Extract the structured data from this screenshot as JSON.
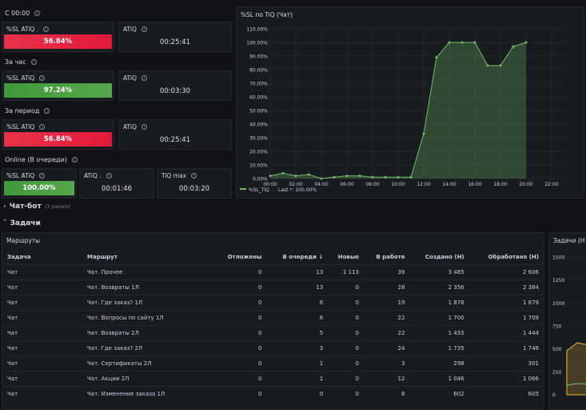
{
  "sections": {
    "since_midnight": "С 00:00",
    "last_hour": "За час",
    "period": "За период",
    "online": "Online (В очереди)"
  },
  "stats": {
    "sl1": {
      "title": "%SL ATiQ .",
      "value": "56.84%"
    },
    "atiq1": {
      "title": "ATiQ",
      "value": "00:25:41"
    },
    "sl2": {
      "title": "%SL ATiQ",
      "value": "97.24%"
    },
    "atiq2": {
      "title": "ATiQ",
      "value": "00:03:30"
    },
    "sl3": {
      "title": "%SL ATiQ",
      "value": "56.84%"
    },
    "atiq3": {
      "title": "ATiQ",
      "value": "00:25:41"
    },
    "sl4": {
      "title": "%SL ATiQ",
      "value": "100.00%"
    },
    "atiq4": {
      "title": "ATiQ .",
      "value": "00:01:46"
    },
    "tiqmax": {
      "title": "TiQ max",
      "value": "00:03:20"
    }
  },
  "colors": {
    "red": "#e21a3a",
    "green": "#56a64b",
    "line": "#73bf69"
  },
  "chart_data": {
    "type": "area",
    "title": "%SL по TiQ (Чат)",
    "x": [
      "00:00",
      "01:00",
      "02:00",
      "03:00",
      "04:00",
      "05:00",
      "06:00",
      "07:00",
      "08:00",
      "09:00",
      "10:00",
      "11:00",
      "12:00",
      "13:00",
      "14:00",
      "15:00",
      "16:00",
      "17:00",
      "18:00",
      "19:00",
      "20:00"
    ],
    "x_ticks": [
      "00:00",
      "02:00",
      "04:00",
      "06:00",
      "08:00",
      "10:00",
      "12:00",
      "14:00",
      "16:00",
      "18:00",
      "20:00",
      "22:00"
    ],
    "y_ticks": [
      "0.00%",
      "10.00%",
      "20.00%",
      "30.00%",
      "40.00%",
      "50.00%",
      "60.00%",
      "70.00%",
      "80.00%",
      "90.00%",
      "100.00%",
      "110.00%"
    ],
    "ylim": [
      0,
      110
    ],
    "xlim_hours": [
      0,
      23
    ],
    "series": [
      {
        "name": "%SL_TiQ",
        "values": [
          2,
          4,
          2,
          3,
          0,
          1,
          2,
          2,
          1,
          1,
          1,
          1,
          33,
          89,
          100,
          100,
          100,
          83,
          83,
          97,
          100
        ]
      }
    ],
    "legend": "%SL_TiQ",
    "legend_extra": "Last *: 100.00%"
  },
  "rows": {
    "chatbot": {
      "label": "Чат-бот",
      "sub": "(3 panels)"
    },
    "tasks": {
      "label": "Задачи"
    }
  },
  "routes_table": {
    "title": "Маршруты",
    "columns": [
      "Задача",
      "Маршрут",
      "Отложены",
      "В очереди ↓",
      "Новые",
      "В работе",
      "Создано (Н)",
      "Обработано (Н)"
    ],
    "rows": [
      [
        "Чат",
        "Чат. Прочее",
        "0",
        "13",
        "1 113",
        "39",
        "3 485",
        "2 606"
      ],
      [
        "Чат",
        "Чат. Возвраты 1Л",
        "0",
        "13",
        "0",
        "28",
        "2 356",
        "2 384"
      ],
      [
        "Чат",
        "Чат. Где заказ? 1Л",
        "0",
        "6",
        "0",
        "19",
        "1 878",
        "1 879"
      ],
      [
        "Чат",
        "Чат. Вопросы по сайту 1Л",
        "0",
        "6",
        "0",
        "22",
        "1 700",
        "1 709"
      ],
      [
        "Чат",
        "Чат. Возвраты 2Л",
        "0",
        "5",
        "0",
        "22",
        "1 433",
        "1 444"
      ],
      [
        "Чат",
        "Чат. Где заказ? 2Л",
        "0",
        "3",
        "0",
        "24",
        "1 735",
        "1 748"
      ],
      [
        "Чат",
        "Чат. Сертификаты 2Л",
        "0",
        "1",
        "0",
        "3",
        "298",
        "301"
      ],
      [
        "Чат",
        "Чат. Акции 2Л",
        "0",
        "1",
        "0",
        "12",
        "1 046",
        "1 066"
      ],
      [
        "Чат",
        "Чат. Изменение заказа 1Л",
        "0",
        "0",
        "0",
        "8",
        "602",
        "605"
      ]
    ]
  },
  "tasks_panel": {
    "title": "Задачи (Н",
    "y_ticks": [
      "1500",
      "1250",
      "1000",
      "750",
      "500",
      "250",
      "0"
    ]
  }
}
